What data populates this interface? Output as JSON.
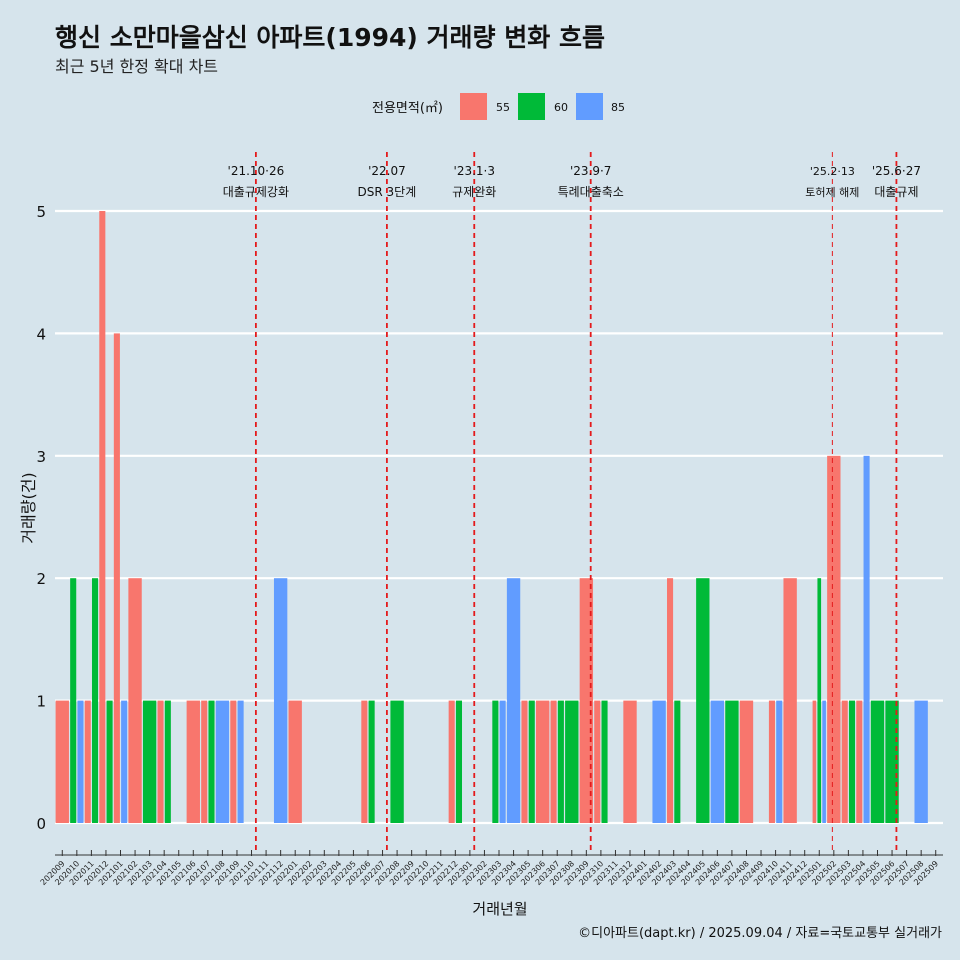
{
  "title": "행신 소만마을삼신 아파트(1994) 거래량 변화 흐름",
  "subtitle": "최근 5년 한정 확대 차트",
  "caption": "©디아파트(dapt.kr) / 2025.09.04 / 자료=국토교통부 실거래가",
  "colors": {
    "55": "#f8766d",
    "60": "#00ba38",
    "85": "#619cff",
    "background": "#d6e4ec",
    "grid": "#ffffff",
    "event": "#e41a1c"
  },
  "chart_data": {
    "type": "bar",
    "xlabel": "거래년월",
    "ylabel": "거래량(건)",
    "ylim": [
      0,
      5
    ],
    "yticks": [
      0,
      1,
      2,
      3,
      4,
      5
    ],
    "legend": {
      "title": "전용면적(㎡)",
      "entries": [
        "55",
        "60",
        "85"
      ],
      "placement": "top"
    },
    "categories": [
      "202009",
      "202010",
      "202011",
      "202012",
      "202101",
      "202102",
      "202103",
      "202104",
      "202105",
      "202106",
      "202107",
      "202108",
      "202109",
      "202110",
      "202111",
      "202112",
      "202201",
      "202202",
      "202203",
      "202204",
      "202205",
      "202206",
      "202207",
      "202208",
      "202209",
      "202210",
      "202211",
      "202212",
      "202301",
      "202302",
      "202303",
      "202304",
      "202305",
      "202306",
      "202307",
      "202308",
      "202309",
      "202310",
      "202311",
      "202312",
      "202401",
      "202402",
      "202403",
      "202404",
      "202405",
      "202406",
      "202407",
      "202408",
      "202409",
      "202410",
      "202411",
      "202412",
      "202501",
      "202502",
      "202503",
      "202504",
      "202505",
      "202506",
      "202507",
      "202508",
      "202509"
    ],
    "series": [
      {
        "name": "55",
        "values": [
          1,
          0,
          1,
          5,
          4,
          2,
          0,
          1,
          0,
          1,
          1,
          0,
          1,
          0,
          0,
          0,
          1,
          0,
          0,
          0,
          0,
          1,
          0,
          0,
          0,
          0,
          0,
          1,
          0,
          0,
          0,
          0,
          1,
          1,
          1,
          0,
          2,
          1,
          0,
          1,
          0,
          0,
          2,
          0,
          0,
          0,
          0,
          1,
          0,
          1,
          2,
          0,
          1,
          3,
          1,
          1,
          0,
          0,
          0,
          0,
          0
        ]
      },
      {
        "name": "60",
        "values": [
          0,
          2,
          2,
          1,
          0,
          0,
          1,
          1,
          0,
          0,
          1,
          0,
          0,
          0,
          0,
          0,
          0,
          0,
          0,
          0,
          0,
          1,
          0,
          1,
          0,
          0,
          0,
          1,
          0,
          0,
          1,
          0,
          1,
          0,
          1,
          1,
          0,
          1,
          0,
          0,
          0,
          0,
          1,
          0,
          2,
          0,
          1,
          0,
          0,
          0,
          0,
          0,
          2,
          0,
          1,
          0,
          1,
          1,
          0,
          0,
          0
        ]
      },
      {
        "name": "85",
        "values": [
          0,
          1,
          0,
          0,
          1,
          0,
          0,
          0,
          0,
          0,
          0,
          1,
          1,
          0,
          0,
          2,
          0,
          0,
          0,
          0,
          0,
          0,
          0,
          0,
          0,
          0,
          0,
          0,
          0,
          0,
          1,
          2,
          0,
          0,
          0,
          0,
          0,
          0,
          0,
          0,
          0,
          1,
          0,
          0,
          0,
          1,
          0,
          0,
          0,
          1,
          0,
          0,
          1,
          0,
          0,
          3,
          0,
          0,
          0,
          1,
          0
        ]
      }
    ],
    "events": [
      {
        "date": "'21.10·26",
        "label": "대출규제강화",
        "index": 13.8,
        "style": "solid"
      },
      {
        "date": "'22.07",
        "label": "DSR 3단계",
        "index": 22.8,
        "style": "solid"
      },
      {
        "date": "'23.1·3",
        "label": "규제완화",
        "index": 28.8,
        "style": "solid"
      },
      {
        "date": "'23.9·7",
        "label": "특례대출축소",
        "index": 36.8,
        "style": "solid"
      },
      {
        "date": "'25.2·13",
        "label": "토허제 해제",
        "index": 53.4,
        "style": "thin"
      },
      {
        "date": "'25.6·27",
        "label": "대출규제",
        "index": 57.8,
        "style": "solid"
      }
    ]
  }
}
